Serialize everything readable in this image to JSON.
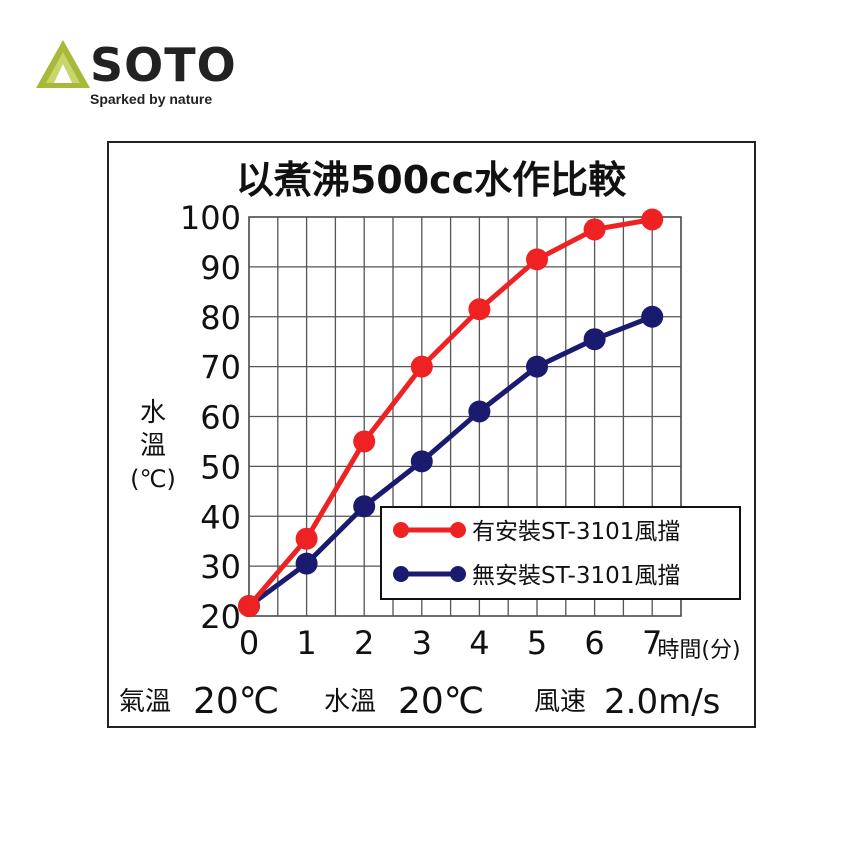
{
  "brand": {
    "name": "SOTO",
    "tagline": "Sparked by nature",
    "logo_color": "#a8b83a"
  },
  "chart_data": {
    "type": "line",
    "title": "以煮沸500cc水作比較",
    "x": [
      0,
      1,
      2,
      3,
      4,
      5,
      6,
      7
    ],
    "x_ticks": [
      "0",
      "1",
      "2",
      "3",
      "4",
      "5",
      "6",
      "7"
    ],
    "xlabel": "時間(分)",
    "ylabel_lines": [
      "水",
      "溫",
      "(℃)"
    ],
    "y_ticks": [
      20,
      30,
      40,
      50,
      60,
      70,
      80,
      90,
      100
    ],
    "xlim": [
      0,
      7.5
    ],
    "ylim": [
      20,
      100
    ],
    "grid": true,
    "legend_position": "lower-right",
    "series": [
      {
        "name": "有安裝ST-3101風擋",
        "color": "#ee2222",
        "values": [
          22,
          35.5,
          55,
          70,
          81.5,
          91.5,
          97.5,
          99.5
        ]
      },
      {
        "name": "無安裝ST-3101風擋",
        "color": "#1a1a6e",
        "values": [
          22,
          30.5,
          42,
          51,
          61,
          70,
          75.5,
          80
        ]
      }
    ],
    "footer": {
      "air_label": "氣溫",
      "air_value": "20℃",
      "water_label": "水溫",
      "water_value": "20℃",
      "wind_label": "風速",
      "wind_value": "2.0m/s"
    }
  }
}
